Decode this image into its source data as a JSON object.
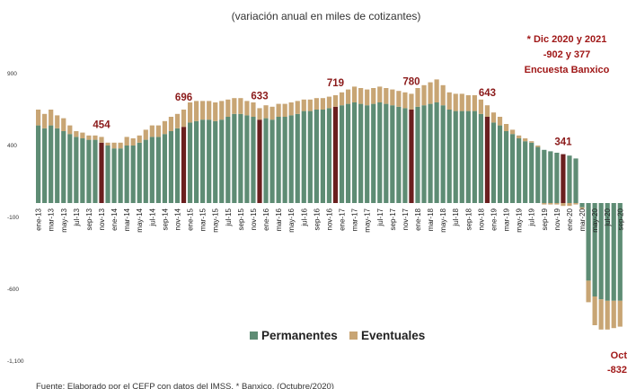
{
  "chart_data": {
    "type": "bar",
    "stacked": true,
    "title": "(variación anual en miles de cotizantes)",
    "ylim": [
      -1100,
      1150
    ],
    "yticks": [
      {
        "value": 900,
        "label": "900"
      },
      {
        "value": 400,
        "label": "400"
      },
      {
        "value": -100,
        "label": "-100"
      },
      {
        "value": -600,
        "label": "-600"
      },
      {
        "value": -1100,
        "label": "-1,100"
      }
    ],
    "x_tick_labels": [
      "ene-13",
      "mar-13",
      "may-13",
      "jul-13",
      "sep-13",
      "nov-13",
      "ene-14",
      "mar-14",
      "may-14",
      "jul-14",
      "sep-14",
      "nov-14",
      "ene-15",
      "mar-15",
      "may-15",
      "jul-15",
      "sep-15",
      "nov-15",
      "ene-16",
      "mar-16",
      "may-16",
      "jul-16",
      "sep-16",
      "nov-16",
      "ene-17",
      "mar-17",
      "may-17",
      "jul-17",
      "sep-17",
      "nov-17",
      "ene-18",
      "mar-18",
      "may-18",
      "jul-18",
      "sep-18",
      "nov-18",
      "ene-19",
      "mar-19",
      "may-19",
      "jul-19",
      "sep-19",
      "nov-19",
      "ene-20",
      "mar-20",
      "may-20",
      "jul-20",
      "sep-20"
    ],
    "categories": [
      "ene-13",
      "feb-13",
      "mar-13",
      "abr-13",
      "may-13",
      "jun-13",
      "jul-13",
      "ago-13",
      "sep-13",
      "oct-13",
      "nov-13",
      "dic-13",
      "ene-14",
      "feb-14",
      "mar-14",
      "abr-14",
      "may-14",
      "jun-14",
      "jul-14",
      "ago-14",
      "sep-14",
      "oct-14",
      "nov-14",
      "dic-14",
      "ene-15",
      "feb-15",
      "mar-15",
      "abr-15",
      "may-15",
      "jun-15",
      "jul-15",
      "ago-15",
      "sep-15",
      "oct-15",
      "nov-15",
      "dic-15",
      "ene-16",
      "feb-16",
      "mar-16",
      "abr-16",
      "may-16",
      "jun-16",
      "jul-16",
      "ago-16",
      "sep-16",
      "oct-16",
      "nov-16",
      "dic-16",
      "ene-17",
      "feb-17",
      "mar-17",
      "abr-17",
      "may-17",
      "jun-17",
      "jul-17",
      "ago-17",
      "sep-17",
      "oct-17",
      "nov-17",
      "dic-17",
      "ene-18",
      "feb-18",
      "mar-18",
      "abr-18",
      "may-18",
      "jun-18",
      "jul-18",
      "ago-18",
      "sep-18",
      "oct-18",
      "nov-18",
      "dic-18",
      "ene-19",
      "feb-19",
      "mar-19",
      "abr-19",
      "may-19",
      "jun-19",
      "jul-19",
      "ago-19",
      "sep-19",
      "oct-19",
      "nov-19",
      "dic-19",
      "ene-20",
      "feb-20",
      "mar-20",
      "abr-20",
      "may-20",
      "jun-20",
      "jul-20",
      "ago-20",
      "sep-20"
    ],
    "series": [
      {
        "name": "Permanentes",
        "color": "#5E8C74",
        "values": [
          540,
          520,
          540,
          520,
          500,
          480,
          460,
          450,
          440,
          440,
          420,
          400,
          380,
          380,
          400,
          400,
          420,
          440,
          460,
          460,
          480,
          500,
          520,
          530,
          560,
          570,
          580,
          580,
          570,
          580,
          600,
          620,
          620,
          610,
          600,
          580,
          590,
          580,
          600,
          600,
          610,
          620,
          640,
          640,
          650,
          650,
          660,
          670,
          680,
          690,
          700,
          690,
          680,
          690,
          700,
          690,
          680,
          670,
          660,
          650,
          670,
          680,
          690,
          700,
          680,
          650,
          640,
          640,
          640,
          640,
          620,
          600,
          560,
          540,
          500,
          480,
          450,
          430,
          420,
          390,
          370,
          360,
          350,
          340,
          330,
          310,
          -30,
          -540,
          -650,
          -670,
          -680,
          -680,
          -680
        ]
      },
      {
        "name": "Eventuales",
        "color": "#C8A574",
        "values": [
          110,
          100,
          110,
          90,
          90,
          60,
          40,
          40,
          30,
          30,
          40,
          20,
          40,
          40,
          60,
          50,
          50,
          70,
          80,
          80,
          90,
          100,
          100,
          120,
          140,
          140,
          130,
          130,
          130,
          130,
          120,
          110,
          110,
          100,
          100,
          80,
          90,
          90,
          90,
          90,
          90,
          90,
          80,
          80,
          80,
          80,
          80,
          80,
          90,
          100,
          110,
          110,
          110,
          110,
          110,
          110,
          110,
          110,
          110,
          110,
          130,
          140,
          150,
          160,
          140,
          120,
          120,
          120,
          110,
          110,
          100,
          80,
          70,
          60,
          50,
          30,
          20,
          20,
          10,
          10,
          -10,
          -10,
          -10,
          -20,
          -20,
          -10,
          -10,
          -150,
          -200,
          -210,
          -200,
          -190,
          -180
        ]
      }
    ],
    "highlighted": [
      {
        "category": "nov-13",
        "label": "454"
      },
      {
        "category": "dic-14",
        "label": "696"
      },
      {
        "category": "dic-15",
        "label": "633"
      },
      {
        "category": "dic-16",
        "label": "719"
      },
      {
        "category": "dic-17",
        "label": "780"
      },
      {
        "category": "dic-18",
        "label": "643"
      },
      {
        "category": "dic-19",
        "label": "341"
      }
    ],
    "highlight_color": "#6B1F1F",
    "annotation_lines": [
      "* Dic 2020 y 2021",
      "-902 y 377",
      "Encuesta Banxico"
    ],
    "oct_label": [
      "Oct",
      "-832"
    ],
    "legend": {
      "position": "bottom",
      "items": [
        "Permanentes",
        "Eventuales"
      ]
    },
    "source": "Fuente: Elaborado por el CEFP con datos del IMSS. * Banxico. (Octubre/2020)"
  }
}
